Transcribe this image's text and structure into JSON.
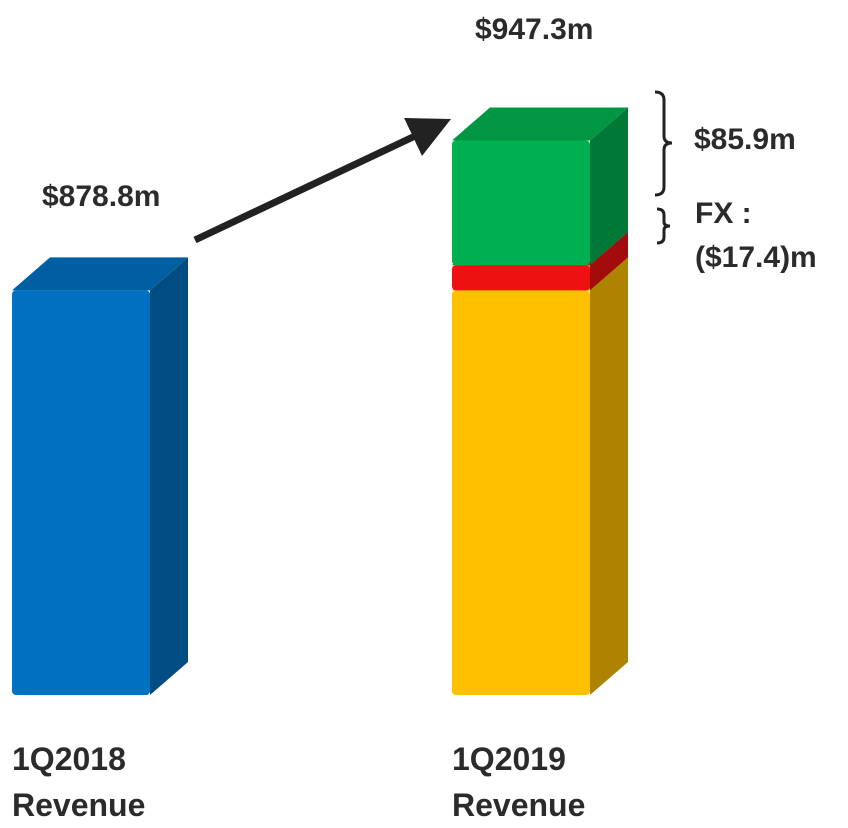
{
  "chart_data": {
    "type": "bar3d",
    "categories": [
      "1Q2018 Revenue",
      "1Q2019 Revenue"
    ],
    "values": [
      878.8,
      947.3
    ],
    "value_labels": [
      "$878.8m",
      "$947.3m"
    ],
    "colors": [
      "#0070c0",
      "#ffc000"
    ],
    "segments": [
      {
        "label": "FX : ($17.4)m",
        "value": -17.4,
        "color": "#ee1111"
      },
      {
        "label": "$85.9m",
        "value": 85.9,
        "color": "#00b050"
      }
    ],
    "ylim": [
      600,
      990
    ]
  }
}
